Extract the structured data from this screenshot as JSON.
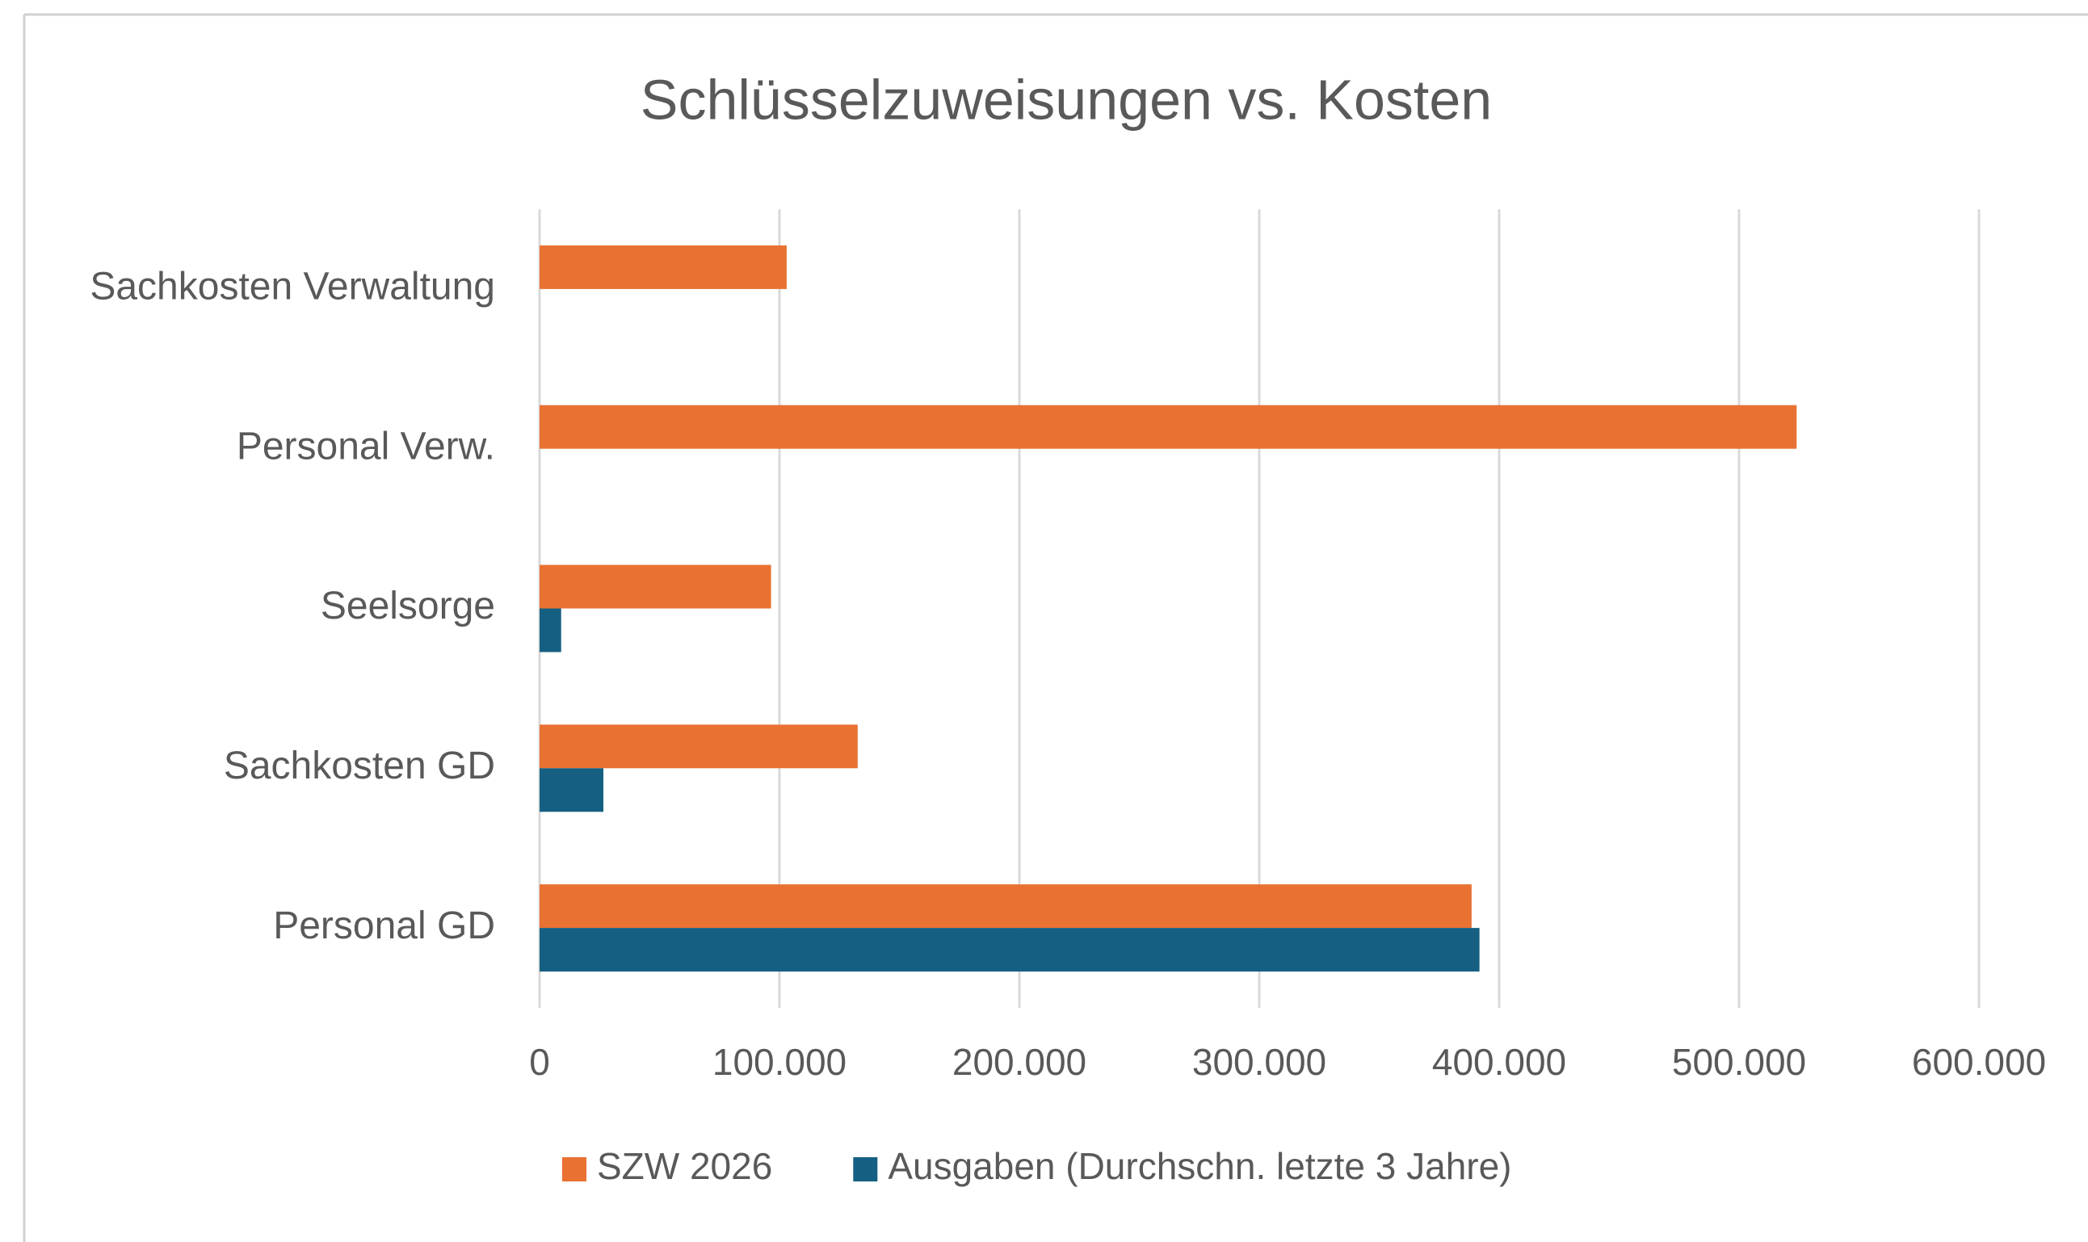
{
  "chart_data": {
    "type": "bar",
    "orientation": "horizontal",
    "title": "Schlüsselzuweisungen vs. Kosten",
    "categories": [
      "Personal GD",
      "Sachkosten GD",
      "Seelsorge",
      "Personal Verw.",
      "Sachkosten Verwaltung"
    ],
    "series": [
      {
        "name": "SZW 2026",
        "color": "#e97132",
        "values": [
          388500,
          132600,
          96500,
          524000,
          103000
        ]
      },
      {
        "name": "Ausgaben (Durchschn. letzte 3 Jahre)",
        "color": "#156082",
        "values": [
          391800,
          26600,
          9000,
          0,
          0
        ]
      }
    ],
    "xlim": [
      0,
      600000
    ],
    "xticks": [
      0,
      {
        "value": 100000,
        "label": "100.000"
      },
      {
        "value": 200000,
        "label": "200.000"
      },
      {
        "value": 300000,
        "label": "300.000"
      },
      {
        "value": 400000,
        "label": "400.000"
      },
      {
        "value": 500000,
        "label": "500.000"
      },
      {
        "value": 600000,
        "label": "600.000"
      }
    ],
    "grid": true,
    "legend": "bottom"
  }
}
